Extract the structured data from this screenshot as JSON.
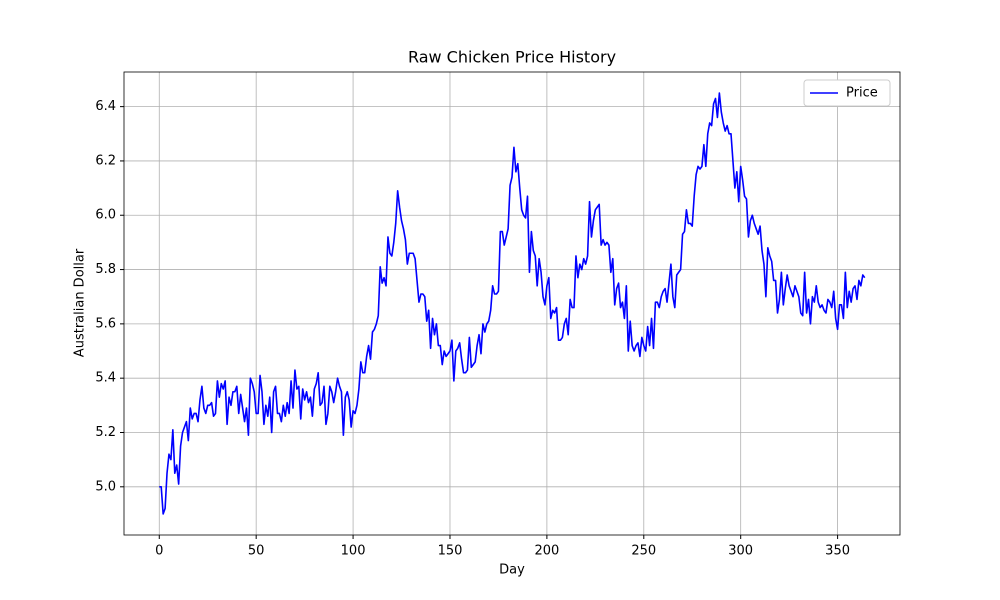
{
  "chart_data": {
    "type": "line",
    "title": "Raw Chicken Price History",
    "x_label": "Day",
    "y_label": "Australian Dollar",
    "x": [
      0,
      1,
      2,
      3,
      4,
      5,
      6,
      7,
      8,
      9,
      10,
      11,
      12,
      13,
      14,
      15,
      16,
      17,
      18,
      19,
      20,
      21,
      22,
      23,
      24,
      25,
      26,
      27,
      28,
      29,
      30,
      31,
      32,
      33,
      34,
      35,
      36,
      37,
      38,
      39,
      40,
      41,
      42,
      43,
      44,
      45,
      46,
      47,
      48,
      49,
      50,
      51,
      52,
      53,
      54,
      55,
      56,
      57,
      58,
      59,
      60,
      61,
      62,
      63,
      64,
      65,
      66,
      67,
      68,
      69,
      70,
      71,
      72,
      73,
      74,
      75,
      76,
      77,
      78,
      79,
      80,
      81,
      82,
      83,
      84,
      85,
      86,
      87,
      88,
      89,
      90,
      91,
      92,
      93,
      94,
      95,
      96,
      97,
      98,
      99,
      100,
      101,
      102,
      103,
      104,
      105,
      106,
      107,
      108,
      109,
      110,
      111,
      112,
      113,
      114,
      115,
      116,
      117,
      118,
      119,
      120,
      121,
      122,
      123,
      124,
      125,
      126,
      127,
      128,
      129,
      130,
      131,
      132,
      133,
      134,
      135,
      136,
      137,
      138,
      139,
      140,
      141,
      142,
      143,
      144,
      145,
      146,
      147,
      148,
      149,
      150,
      151,
      152,
      153,
      154,
      155,
      156,
      157,
      158,
      159,
      160,
      161,
      162,
      163,
      164,
      165,
      166,
      167,
      168,
      169,
      170,
      171,
      172,
      173,
      174,
      175,
      176,
      177,
      178,
      179,
      180,
      181,
      182,
      183,
      184,
      185,
      186,
      187,
      188,
      189,
      190,
      191,
      192,
      193,
      194,
      195,
      196,
      197,
      198,
      199,
      200,
      201,
      202,
      203,
      204,
      205,
      206,
      207,
      208,
      209,
      210,
      211,
      212,
      213,
      214,
      215,
      216,
      217,
      218,
      219,
      220,
      221,
      222,
      223,
      224,
      225,
      226,
      227,
      228,
      229,
      230,
      231,
      232,
      233,
      234,
      235,
      236,
      237,
      238,
      239,
      240,
      241,
      242,
      243,
      244,
      245,
      246,
      247,
      248,
      249,
      250,
      251,
      252,
      253,
      254,
      255,
      256,
      257,
      258,
      259,
      260,
      261,
      262,
      263,
      264,
      265,
      266,
      267,
      268,
      269,
      270,
      271,
      272,
      273,
      274,
      275,
      276,
      277,
      278,
      279,
      280,
      281,
      282,
      283,
      284,
      285,
      286,
      287,
      288,
      289,
      290,
      291,
      292,
      293,
      294,
      295,
      296,
      297,
      298,
      299,
      300,
      301,
      302,
      303,
      304,
      305,
      306,
      307,
      308,
      309,
      310,
      311,
      312,
      313,
      314,
      315,
      316,
      317,
      318,
      319,
      320,
      321,
      322,
      323,
      324,
      325,
      326,
      327,
      328,
      329,
      330,
      331,
      332,
      333,
      334,
      335,
      336,
      337,
      338,
      339,
      340,
      341,
      342,
      343,
      344,
      345,
      346,
      347,
      348,
      349,
      350,
      351,
      352,
      353,
      354,
      355,
      356,
      357,
      358,
      359,
      360,
      361,
      362,
      363,
      364
    ],
    "series": [
      {
        "name": "Price",
        "color": "#0000ff",
        "values": [
          5.0,
          5.0,
          4.9,
          4.92,
          5.05,
          5.12,
          5.1,
          5.21,
          5.05,
          5.08,
          5.01,
          5.15,
          5.2,
          5.22,
          5.24,
          5.17,
          5.29,
          5.25,
          5.27,
          5.27,
          5.24,
          5.32,
          5.37,
          5.29,
          5.27,
          5.3,
          5.3,
          5.31,
          5.26,
          5.27,
          5.39,
          5.33,
          5.38,
          5.36,
          5.39,
          5.23,
          5.33,
          5.3,
          5.35,
          5.35,
          5.37,
          5.27,
          5.34,
          5.29,
          5.24,
          5.29,
          5.19,
          5.4,
          5.38,
          5.35,
          5.27,
          5.27,
          5.41,
          5.35,
          5.23,
          5.3,
          5.26,
          5.33,
          5.2,
          5.35,
          5.37,
          5.27,
          5.27,
          5.24,
          5.3,
          5.26,
          5.31,
          5.27,
          5.39,
          5.29,
          5.43,
          5.36,
          5.37,
          5.25,
          5.36,
          5.32,
          5.35,
          5.31,
          5.33,
          5.26,
          5.36,
          5.38,
          5.42,
          5.3,
          5.31,
          5.37,
          5.23,
          5.27,
          5.37,
          5.35,
          5.31,
          5.35,
          5.4,
          5.37,
          5.35,
          5.19,
          5.33,
          5.35,
          5.32,
          5.22,
          5.28,
          5.27,
          5.3,
          5.36,
          5.46,
          5.42,
          5.42,
          5.48,
          5.52,
          5.47,
          5.57,
          5.58,
          5.6,
          5.63,
          5.81,
          5.75,
          5.77,
          5.74,
          5.92,
          5.86,
          5.85,
          5.9,
          5.97,
          6.09,
          6.03,
          5.98,
          5.95,
          5.91,
          5.82,
          5.86,
          5.86,
          5.86,
          5.84,
          5.76,
          5.68,
          5.71,
          5.71,
          5.7,
          5.61,
          5.65,
          5.51,
          5.62,
          5.56,
          5.6,
          5.52,
          5.52,
          5.45,
          5.5,
          5.48,
          5.49,
          5.5,
          5.54,
          5.39,
          5.5,
          5.51,
          5.53,
          5.47,
          5.42,
          5.42,
          5.43,
          5.55,
          5.44,
          5.45,
          5.46,
          5.52,
          5.56,
          5.49,
          5.6,
          5.57,
          5.6,
          5.61,
          5.65,
          5.74,
          5.71,
          5.71,
          5.72,
          5.94,
          5.94,
          5.89,
          5.92,
          5.95,
          6.11,
          6.14,
          6.25,
          6.16,
          6.19,
          6.1,
          6.02,
          6.0,
          5.99,
          6.07,
          5.79,
          5.94,
          5.87,
          5.85,
          5.74,
          5.84,
          5.79,
          5.7,
          5.67,
          5.74,
          5.77,
          5.62,
          5.65,
          5.64,
          5.66,
          5.54,
          5.54,
          5.55,
          5.6,
          5.62,
          5.56,
          5.69,
          5.66,
          5.66,
          5.85,
          5.77,
          5.82,
          5.8,
          5.84,
          5.82,
          5.85,
          6.05,
          5.92,
          5.98,
          6.02,
          6.03,
          6.04,
          5.89,
          5.91,
          5.89,
          5.9,
          5.89,
          5.79,
          5.84,
          5.67,
          5.73,
          5.75,
          5.66,
          5.68,
          5.62,
          5.74,
          5.5,
          5.61,
          5.52,
          5.5,
          5.52,
          5.53,
          5.48,
          5.55,
          5.52,
          5.5,
          5.59,
          5.52,
          5.62,
          5.51,
          5.68,
          5.68,
          5.66,
          5.7,
          5.72,
          5.73,
          5.68,
          5.75,
          5.82,
          5.7,
          5.66,
          5.78,
          5.79,
          5.8,
          5.93,
          5.94,
          6.02,
          5.97,
          5.97,
          5.96,
          6.07,
          6.15,
          6.18,
          6.17,
          6.18,
          6.26,
          6.18,
          6.3,
          6.34,
          6.33,
          6.41,
          6.43,
          6.36,
          6.45,
          6.38,
          6.34,
          6.31,
          6.33,
          6.3,
          6.3,
          6.2,
          6.1,
          6.16,
          6.05,
          6.18,
          6.13,
          6.07,
          6.06,
          5.92,
          5.98,
          6.0,
          5.97,
          5.95,
          5.93,
          5.96,
          5.87,
          5.82,
          5.7,
          5.88,
          5.85,
          5.83,
          5.76,
          5.76,
          5.64,
          5.69,
          5.79,
          5.67,
          5.73,
          5.78,
          5.74,
          5.72,
          5.7,
          5.74,
          5.72,
          5.7,
          5.64,
          5.63,
          5.79,
          5.64,
          5.69,
          5.6,
          5.7,
          5.68,
          5.74,
          5.68,
          5.66,
          5.67,
          5.65,
          5.64,
          5.69,
          5.68,
          5.66,
          5.72,
          5.62,
          5.58,
          5.67,
          5.67,
          5.62,
          5.79,
          5.66,
          5.72,
          5.68,
          5.73,
          5.74,
          5.69,
          5.76,
          5.74,
          5.78,
          5.77
        ]
      }
    ],
    "xlim": [
      -18.2,
      382.2
    ],
    "ylim": [
      4.8225,
      6.5275
    ],
    "xticks": [
      0,
      50,
      100,
      150,
      200,
      250,
      300,
      350
    ],
    "yticks": [
      {
        "value": 5,
        "label": "5.0"
      },
      5.2,
      5.4,
      5.6,
      5.8,
      {
        "value": 6,
        "label": "6.0"
      },
      6.2,
      6.4
    ],
    "grid": true,
    "legend": "upper right"
  }
}
